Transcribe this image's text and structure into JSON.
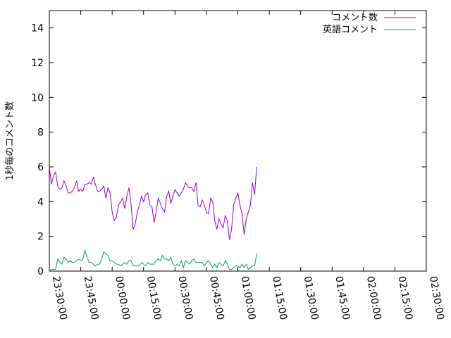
{
  "chart_data": {
    "type": "line",
    "title": "",
    "xlabel": "",
    "ylabel": "1秒毎のコメント数",
    "ylim": [
      0,
      15
    ],
    "yticks": [
      0,
      2,
      4,
      6,
      8,
      10,
      12,
      14
    ],
    "xticks": [
      "23:30:00",
      "23:45:00",
      "00:00:00",
      "00:15:00",
      "00:30:00",
      "00:45:00",
      "01:00:00",
      "01:15:00",
      "01:30:00",
      "01:45:00",
      "02:00:00",
      "02:15:00",
      "02:30:00"
    ],
    "x_minutes_per_point": 1,
    "grid": false,
    "legend_position": "top-right",
    "series": [
      {
        "name": "コメント数",
        "color": "#9400d3",
        "values": [
          6.0,
          5.0,
          5.5,
          5.7,
          4.9,
          4.7,
          4.8,
          5.2,
          4.9,
          4.5,
          4.5,
          4.6,
          4.8,
          5.2,
          4.6,
          4.7,
          4.6,
          5.0,
          5.0,
          5.1,
          5.0,
          5.4,
          5.0,
          4.6,
          4.6,
          4.7,
          4.9,
          4.2,
          4.8,
          4.5,
          3.4,
          2.9,
          3.1,
          3.8,
          4.0,
          4.2,
          3.6,
          4.3,
          4.8,
          3.9,
          2.4,
          2.7,
          3.4,
          3.8,
          4.3,
          4.0,
          4.4,
          4.5,
          3.8,
          3.7,
          2.8,
          3.4,
          4.2,
          3.9,
          3.6,
          3.4,
          4.3,
          4.6,
          3.9,
          4.3,
          4.7,
          4.5,
          4.3,
          4.5,
          4.7,
          5.1,
          4.9,
          4.8,
          4.8,
          4.6,
          5.1,
          3.8,
          3.7,
          4.1,
          3.8,
          3.4,
          3.3,
          4.2,
          4.0,
          2.9,
          2.4,
          3.0,
          2.7,
          2.5,
          3.2,
          2.9,
          1.8,
          2.4,
          3.8,
          4.2,
          4.5,
          3.8,
          3.3,
          2.1,
          3.0,
          3.4,
          3.8,
          5.1,
          4.4,
          6.0
        ]
      },
      {
        "name": "英語コメント",
        "color": "#009e73",
        "values": [
          0.0,
          0.1,
          0.1,
          0.1,
          0.7,
          0.5,
          0.4,
          0.8,
          0.7,
          0.5,
          0.6,
          0.5,
          0.5,
          0.6,
          0.7,
          0.6,
          0.7,
          1.2,
          0.8,
          0.5,
          0.5,
          0.4,
          0.3,
          0.4,
          0.4,
          0.7,
          1.1,
          1.0,
          0.9,
          0.6,
          0.6,
          0.5,
          0.4,
          0.4,
          0.3,
          0.4,
          0.5,
          0.4,
          0.6,
          0.6,
          0.3,
          0.3,
          0.3,
          0.3,
          0.5,
          0.4,
          0.3,
          0.5,
          0.4,
          0.4,
          0.4,
          0.6,
          0.7,
          0.6,
          0.9,
          0.7,
          0.7,
          0.6,
          0.8,
          0.4,
          0.3,
          0.4,
          0.3,
          0.6,
          0.2,
          0.6,
          0.5,
          0.4,
          0.6,
          0.7,
          0.5,
          0.5,
          0.5,
          0.5,
          0.3,
          0.5,
          0.6,
          0.4,
          0.2,
          0.4,
          0.2,
          0.5,
          0.4,
          0.3,
          0.6,
          0.4,
          0.1,
          0.1,
          0.2,
          0.3,
          0.3,
          0.2,
          0.4,
          0.2,
          0.4,
          0.1,
          0.2,
          0.3,
          0.3,
          1.0
        ]
      }
    ]
  }
}
